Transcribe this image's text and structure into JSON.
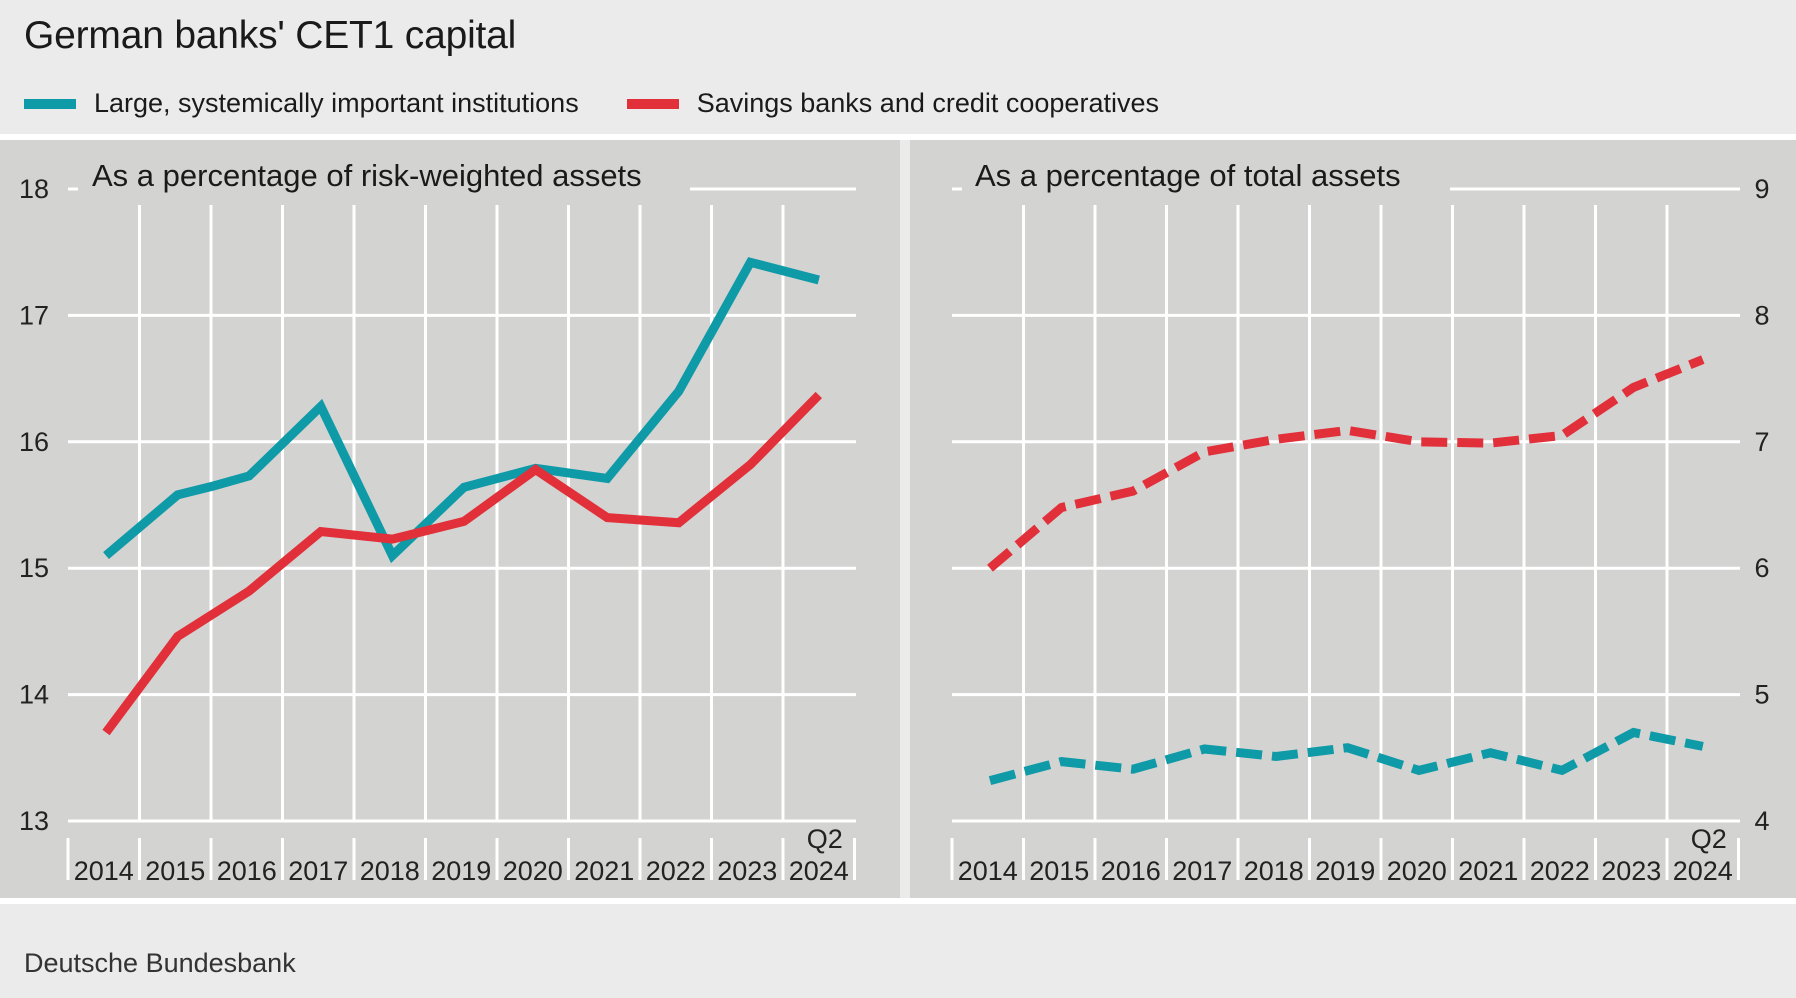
{
  "title": "German banks' CET1 capital",
  "legend": [
    {
      "label": "Large, systemically important institutions",
      "color": "#0e9aa7"
    },
    {
      "label": "Savings banks and credit cooperatives",
      "color": "#e1303a"
    }
  ],
  "source": "Deutsche Bundesbank",
  "chart_data": [
    {
      "type": "line",
      "title": "As a percentage of risk-weighted assets",
      "x": [
        "2014",
        "2015",
        "2016",
        "2017",
        "2018",
        "2019",
        "2020",
        "2021",
        "2022",
        "2023",
        "2024"
      ],
      "last_tick_prefix": "Q2",
      "ylim": [
        13,
        18
      ],
      "yticks": [
        13,
        14,
        15,
        16,
        17,
        18
      ],
      "y_axis_side": "left",
      "grid": true,
      "series": [
        {
          "name": "Large, systemically important institutions",
          "style": "solid",
          "color": "#0e9aa7",
          "points": [
            [
              "2014",
              15.1
            ],
            [
              "2015",
              15.58
            ],
            [
              "2015.5",
              15.65
            ],
            [
              "2016",
              15.73
            ],
            [
              "2017",
              16.28
            ],
            [
              "2018",
              15.1
            ],
            [
              "2019",
              15.64
            ],
            [
              "2020",
              15.79
            ],
            [
              "2021",
              15.71
            ],
            [
              "2022",
              16.4
            ],
            [
              "2023",
              17.42
            ],
            [
              "2024 Q2",
              17.28
            ]
          ]
        },
        {
          "name": "Savings banks and credit cooperatives",
          "style": "solid",
          "color": "#e1303a",
          "points": [
            [
              "2014",
              13.7
            ],
            [
              "2015",
              14.46
            ],
            [
              "2016",
              14.82
            ],
            [
              "2017",
              15.29
            ],
            [
              "2018",
              15.23
            ],
            [
              "2019",
              15.37
            ],
            [
              "2020",
              15.78
            ],
            [
              "2021",
              15.4
            ],
            [
              "2022",
              15.36
            ],
            [
              "2023",
              15.82
            ],
            [
              "2024 Q2",
              16.37
            ]
          ]
        }
      ]
    },
    {
      "type": "line",
      "title": "As a percentage of total assets",
      "x": [
        "2014",
        "2015",
        "2016",
        "2017",
        "2018",
        "2019",
        "2020",
        "2021",
        "2022",
        "2023",
        "2024"
      ],
      "last_tick_prefix": "Q2",
      "ylim": [
        4,
        9
      ],
      "yticks": [
        4,
        5,
        6,
        7,
        8,
        9
      ],
      "y_axis_side": "right",
      "grid": true,
      "series": [
        {
          "name": "Large, systemically important institutions",
          "style": "dashed",
          "color": "#0e9aa7",
          "points": [
            [
              "2014",
              4.32
            ],
            [
              "2015",
              4.47
            ],
            [
              "2016",
              4.41
            ],
            [
              "2017",
              4.57
            ],
            [
              "2018",
              4.51
            ],
            [
              "2019",
              4.58
            ],
            [
              "2020",
              4.4
            ],
            [
              "2021",
              4.54
            ],
            [
              "2022",
              4.4
            ],
            [
              "2023",
              4.7
            ],
            [
              "2024 Q2",
              4.59
            ]
          ]
        },
        {
          "name": "Savings banks and credit cooperatives",
          "style": "dashed",
          "color": "#e1303a",
          "points": [
            [
              "2014",
              6.0
            ],
            [
              "2015",
              6.48
            ],
            [
              "2016",
              6.61
            ],
            [
              "2017",
              6.92
            ],
            [
              "2018",
              7.02
            ],
            [
              "2019",
              7.09
            ],
            [
              "2020",
              7.0
            ],
            [
              "2021",
              6.99
            ],
            [
              "2022",
              7.05
            ],
            [
              "2023",
              7.43
            ],
            [
              "2024 Q2",
              7.65
            ]
          ]
        }
      ]
    }
  ]
}
